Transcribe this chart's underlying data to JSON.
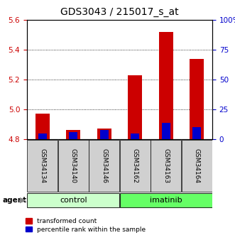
{
  "title": "GDS3043 / 215017_s_at",
  "samples": [
    "GSM34134",
    "GSM34140",
    "GSM34146",
    "GSM34162",
    "GSM34163",
    "GSM34164"
  ],
  "red_values": [
    4.97,
    4.86,
    4.87,
    5.23,
    5.52,
    5.34
  ],
  "blue_values": [
    4.84,
    4.85,
    4.86,
    4.84,
    4.91,
    4.88
  ],
  "ymin": 4.8,
  "ymax": 5.6,
  "y_ticks_left": [
    4.8,
    5.0,
    5.2,
    5.4,
    5.6
  ],
  "y_ticks_right_labels": [
    "0",
    "25",
    "50",
    "75",
    "100%"
  ],
  "bar_width": 0.45,
  "blue_bar_width": 0.27,
  "control_color": "#ccffcc",
  "imatinib_color": "#66ff66",
  "sample_box_color": "#d0d0d0",
  "group_label_fontsize": 8,
  "sample_fontsize": 6.5,
  "title_fontsize": 10,
  "axis_tick_fontsize": 7.5,
  "red_color": "#cc0000",
  "blue_color": "#0000cc",
  "tick_label_color_left": "#cc0000",
  "tick_label_color_right": "#0000cc",
  "legend_fontsize": 6.5
}
